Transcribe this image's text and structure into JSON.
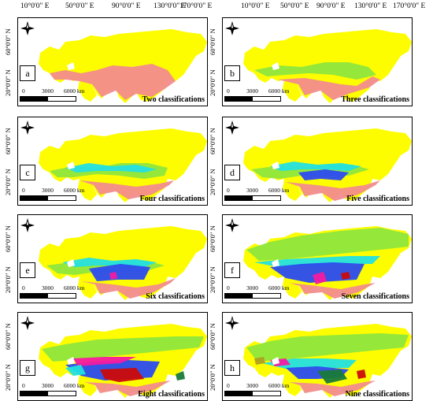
{
  "longitude_labels": [
    "10°0'0\" E",
    "50°0'0\" E",
    "90°0'0\" E",
    "130°0'0\" E",
    "170°0'0\" E"
  ],
  "latitude_labels": [
    "60°0'0\" N",
    "20°0'0\" N"
  ],
  "scale_bar": {
    "ticks": [
      "0",
      "3000",
      "6000 km"
    ]
  },
  "colors": {
    "class1": "#fdfd00",
    "class2": "#f28c8c",
    "class3": "#8fe63c",
    "class4": "#23e0e0",
    "class5": "#2b4bf0",
    "class6": "#f51aa0",
    "class7": "#cc0a0a",
    "class8": "#1a7a3a",
    "class9": "#b0a020"
  },
  "panels": [
    {
      "letter": "a",
      "title": "Two classifications"
    },
    {
      "letter": "b",
      "title": "Three classifications"
    },
    {
      "letter": "c",
      "title": "Four classifications"
    },
    {
      "letter": "d",
      "title": "Five classifications"
    },
    {
      "letter": "e",
      "title": "Six classifications"
    },
    {
      "letter": "f",
      "title": "Seven classifications"
    },
    {
      "letter": "g",
      "title": "Eight classifications"
    },
    {
      "letter": "h",
      "title": "Nine classifications"
    }
  ]
}
